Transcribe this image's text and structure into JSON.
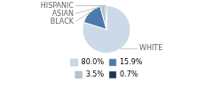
{
  "chart_data": {
    "type": "pie",
    "categories": [
      "WHITE",
      "BLACK",
      "ASIAN",
      "HISPANIC"
    ],
    "values": [
      80.0,
      15.9,
      3.5,
      0.7
    ],
    "value_labels": [
      "80.0%",
      "15.9%",
      "3.5%",
      "0.7%"
    ],
    "colors": [
      "#ccd9e8",
      "#4d7aaa",
      "#b0c4d8",
      "#1c3557"
    ],
    "legend": "bottom"
  }
}
